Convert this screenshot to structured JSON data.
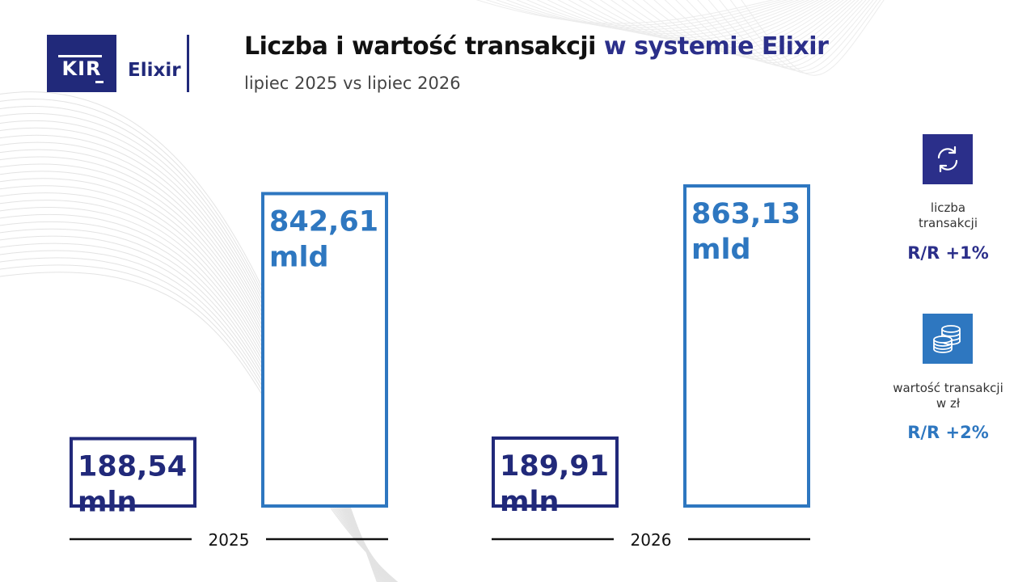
{
  "header": {
    "logo_kir": "KIR",
    "logo_elixir": "Elixir",
    "title_main": "Liczba i wartość transakcji",
    "title_accent": "w systemie Elixir",
    "subtitle": "lipiec 2025 vs lipiec 2026"
  },
  "chart_data": {
    "type": "bar",
    "categories": [
      "2025",
      "2026"
    ],
    "series": [
      {
        "values": [
          188.54,
          189.91
        ],
        "labels": [
          "188,54",
          "189,91"
        ],
        "unit": "mln",
        "color": "#21297a"
      },
      {
        "values": [
          842.61,
          863.13
        ],
        "labels": [
          "842,61",
          "863,13"
        ],
        "unit": "mld",
        "color": "#2e77c0"
      }
    ]
  },
  "sidebar": {
    "count": {
      "label_line1": "liczba",
      "label_line2": "transakcji",
      "change": "R/R +1%",
      "icon": "refresh-arrows-icon",
      "color": "#2b2f8a"
    },
    "value": {
      "label_line1": "wartość transakcji",
      "label_line2": "w zł",
      "change": "R/R +2%",
      "icon": "coin-stack-icon",
      "color": "#2e77c0"
    }
  }
}
